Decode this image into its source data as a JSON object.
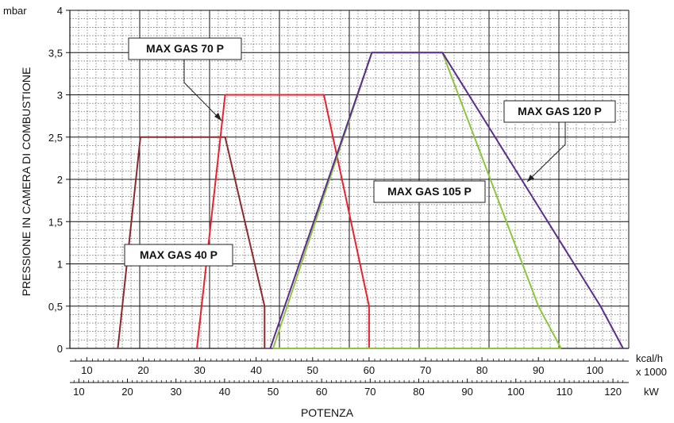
{
  "chart_data": {
    "type": "line",
    "ylabel": "PRESSIONE IN CAMERA DI COMBUSTIONE",
    "yunit": "mbar",
    "xlabel": "POTENZA",
    "ylim": [
      0,
      4
    ],
    "yticks": [
      {
        "value": 0,
        "label": "0"
      },
      {
        "value": 0.5,
        "label": "0,5"
      },
      {
        "value": 1,
        "label": "1"
      },
      {
        "value": 1.5,
        "label": "1,5"
      },
      {
        "value": 2,
        "label": "2"
      },
      {
        "value": 2.5,
        "label": "2,5"
      },
      {
        "value": 3,
        "label": "3"
      },
      {
        "value": 3.5,
        "label": "3,5"
      },
      {
        "value": 4,
        "label": "4"
      }
    ],
    "x_kcal": {
      "unit_line1": "kcal/h",
      "unit_line2": "x 1000",
      "xlim": [
        7,
        106
      ],
      "ticks": [
        10,
        20,
        30,
        40,
        50,
        60,
        70,
        80,
        90,
        100
      ]
    },
    "x_kw": {
      "unit": "kW",
      "ticks": [
        10,
        20,
        30,
        40,
        50,
        60,
        70,
        80,
        90,
        100,
        110,
        120
      ]
    },
    "grid": true,
    "series": [
      {
        "name": "MAX GAS 40 P",
        "color": "#8b2a2e",
        "x_kcal": [
          15.5,
          19.5,
          34.5,
          41.5,
          41.5
        ],
        "y": [
          0,
          2.5,
          2.5,
          0.5,
          0
        ]
      },
      {
        "name": "MAX GAS 70 P",
        "color": "#e8222e",
        "x_kcal": [
          29.5,
          34.5,
          52,
          60,
          60
        ],
        "y": [
          0,
          3,
          3,
          0.5,
          0
        ]
      },
      {
        "name": "MAX GAS 105 P",
        "color": "#8cc63f",
        "x_kcal": [
          43,
          60.5,
          73,
          90,
          94
        ],
        "y": [
          0,
          3.5,
          3.5,
          0.5,
          0
        ]
      },
      {
        "name": "MAX GAS 120 P",
        "color": "#5b2d8c",
        "x_kcal": [
          42.5,
          60.5,
          73,
          101,
          105
        ],
        "y": [
          0,
          3.5,
          3.5,
          0.5,
          0
        ]
      }
    ],
    "baseline_color": "#8cc63f"
  }
}
